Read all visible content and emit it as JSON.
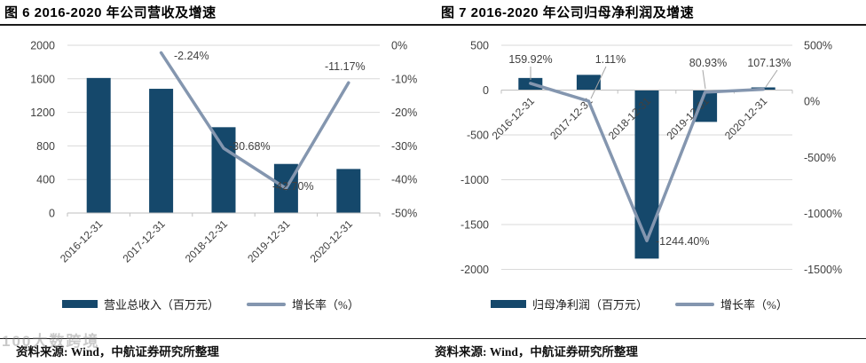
{
  "figure6": {
    "title": "图 6 2016-2020 年公司营收及增速",
    "source": "资料来源: Wind，中航证券研究所整理",
    "legend_bar": "营业总收入（百万元）",
    "legend_line": "增长率（%）"
  },
  "figure7": {
    "title": "图 7 2016-2020 年公司归母净利润及增速",
    "source": "资料来源: Wind，中航证券研究所整理",
    "legend_bar": "归母净利润（百万元）",
    "legend_line": "增长率（%）"
  },
  "watermark": {
    "text": "100大数跨境"
  },
  "colors": {
    "bar": "#15486B",
    "line": "#8496AF",
    "grid": "#D9D9D9",
    "axis": "#BFBFBF",
    "tick_text": "#404040",
    "label_text": "#404040",
    "leader": "#A6A6A6"
  },
  "chart_data": [
    {
      "type": "bar",
      "title": "图 6 2016-2020 年公司营收及增速",
      "categories": [
        "2016-12-31",
        "2017-12-31",
        "2018-12-31",
        "2019-12-31",
        "2020-12-31"
      ],
      "series": [
        {
          "name": "营业总收入（百万元）",
          "type": "bar",
          "axis": "left",
          "values": [
            1610,
            1481,
            1023,
            585,
            525
          ]
        },
        {
          "name": "增长率（%）",
          "type": "line",
          "axis": "right",
          "values": [
            null,
            -2.24,
            -30.68,
            -42.7,
            -11.17
          ],
          "labels": [
            null,
            "-2.24%",
            "-30.68%",
            "-42.70%",
            "-11.17%"
          ]
        }
      ],
      "left_axis": {
        "min": 0,
        "max": 2000,
        "ticks": [
          2000,
          1600,
          1200,
          800,
          400,
          0
        ]
      },
      "right_axis": {
        "top": 0,
        "bottom": -50,
        "ticks": [
          "0%",
          "-10%",
          "-20%",
          "-30%",
          "-40%",
          "-50%"
        ]
      },
      "layout": {
        "grid": true,
        "legend_position": "bottom",
        "x_label_rotation": -45
      }
    },
    {
      "type": "bar",
      "title": "图 7 2016-2020 年公司归母净利润及增速",
      "categories": [
        "2016-12-31",
        "2017-12-31",
        "2018-12-31",
        "2019-12-31",
        "2020-12-31"
      ],
      "series": [
        {
          "name": "归母净利润（百万元）",
          "type": "bar",
          "axis": "left",
          "values": [
            135,
            170,
            -1880,
            -355,
            30
          ]
        },
        {
          "name": "增长率（%）",
          "type": "line",
          "axis": "right",
          "values": [
            159.92,
            1.11,
            -1244.4,
            80.93,
            107.13
          ],
          "labels": [
            "159.92%",
            "1.11%",
            "-1244.40%",
            "80.93%",
            "107.13%"
          ]
        }
      ],
      "left_axis": {
        "min": -2000,
        "max": 500,
        "ticks": [
          500,
          0,
          -500,
          -1000,
          -1500,
          -2000
        ]
      },
      "right_axis": {
        "top": 500,
        "bottom": -1500,
        "ticks": [
          "500%",
          "0%",
          "-500%",
          "-1000%",
          "-1500%"
        ]
      },
      "layout": {
        "grid": true,
        "legend_position": "bottom",
        "x_label_rotation": -45
      }
    }
  ]
}
